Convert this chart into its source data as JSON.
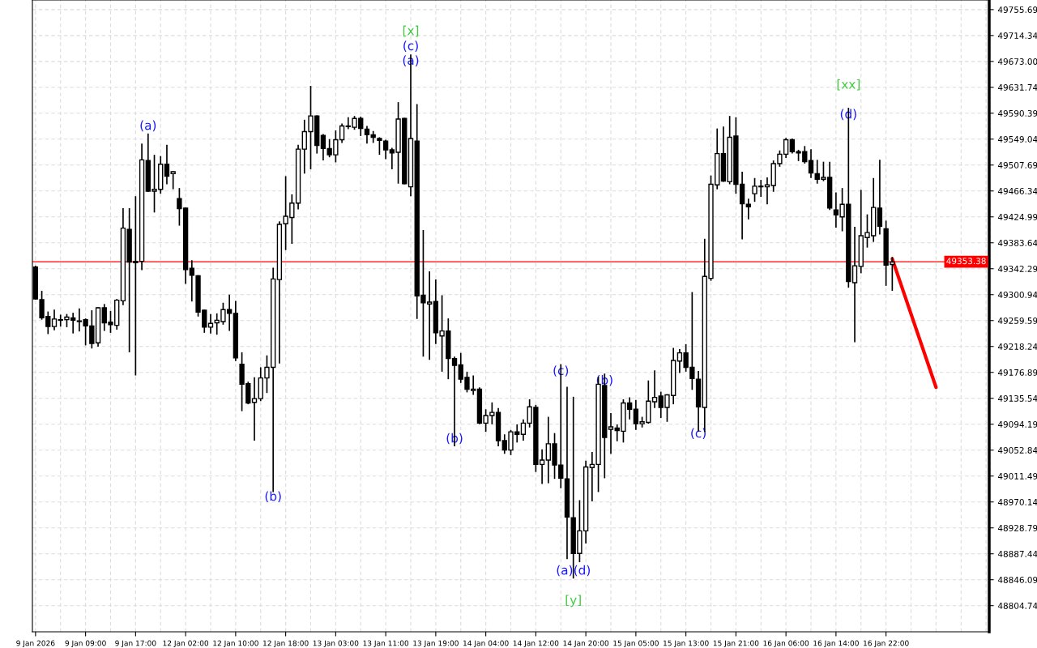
{
  "chart_data": {
    "type": "candlestick",
    "categories": [
      "9 Jan 2026",
      null,
      null,
      null,
      null,
      null,
      null,
      null,
      "9 Jan 09:00",
      null,
      null,
      null,
      null,
      null,
      null,
      null,
      "9 Jan 17:00",
      null,
      null,
      null,
      null,
      null,
      null,
      null,
      "12 Jan 02:00",
      null,
      null,
      null,
      null,
      null,
      null,
      null,
      "12 Jan 10:00",
      null,
      null,
      null,
      null,
      null,
      null,
      null,
      "12 Jan 18:00",
      null,
      null,
      null,
      null,
      null,
      null,
      null,
      "13 Jan 03:00",
      null,
      null,
      null,
      null,
      null,
      null,
      null,
      "13 Jan 11:00",
      null,
      null,
      null,
      null,
      null,
      null,
      null,
      "13 Jan 19:00",
      null,
      null,
      null,
      null,
      null,
      null,
      null,
      "14 Jan 04:00",
      null,
      null,
      null,
      null,
      null,
      null,
      null,
      "14 Jan 12:00",
      null,
      null,
      null,
      null,
      null,
      null,
      null,
      "14 Jan 20:00",
      null,
      null,
      null,
      null,
      null,
      null,
      null,
      "15 Jan 05:00",
      null,
      null,
      null,
      null,
      null,
      null,
      null,
      "15 Jan 13:00",
      null,
      null,
      null,
      null,
      null,
      null,
      null,
      "15 Jan 21:00",
      null,
      null,
      null,
      null,
      null,
      null,
      null,
      "16 Jan 06:00",
      null,
      null,
      null,
      null,
      null,
      null,
      null,
      "16 Jan 14:00",
      null,
      null,
      null,
      null,
      null,
      null,
      null,
      "16 Jan 22:00",
      null,
      null,
      null,
      null,
      null,
      null,
      null,
      null,
      null,
      null,
      null,
      null,
      null,
      null,
      null,
      null
    ],
    "ohlc": [
      [
        49345,
        49347,
        49293,
        49294
      ],
      [
        49293,
        49307,
        49261,
        49264
      ],
      [
        49266,
        49274,
        49238,
        49250
      ],
      [
        49250,
        49277,
        49244,
        49262
      ],
      [
        49260,
        49269,
        49250,
        49261
      ],
      [
        49261,
        49270,
        49249,
        49265
      ],
      [
        49264,
        49272,
        49239,
        49260
      ],
      [
        49259,
        49279,
        49242,
        49258
      ],
      [
        49261,
        49263,
        49220,
        49251
      ],
      [
        49251,
        49276,
        49215,
        49223
      ],
      [
        49224,
        49281,
        49218,
        49280
      ],
      [
        49280,
        49286,
        49243,
        49256
      ],
      [
        49257,
        49275,
        49240,
        49253
      ],
      [
        49252,
        49294,
        49245,
        49292
      ],
      [
        49291,
        49439,
        49284,
        49407
      ],
      [
        49405,
        49439,
        49209,
        49353
      ],
      [
        49354,
        49458,
        49172,
        49352
      ],
      [
        49354,
        49542,
        49340,
        49516
      ],
      [
        49515,
        49558,
        49465,
        49466
      ],
      [
        49466,
        49524,
        49432,
        49469
      ],
      [
        49469,
        49522,
        49462,
        49509
      ],
      [
        49509,
        49540,
        49477,
        49490
      ],
      [
        49494,
        49498,
        49469,
        49497
      ],
      [
        49454,
        49471,
        49411,
        49438
      ],
      [
        49439,
        49440,
        49318,
        49341
      ],
      [
        49343,
        49356,
        49290,
        49332
      ],
      [
        49331,
        49332,
        49266,
        49273
      ],
      [
        49276,
        49277,
        49240,
        49249
      ],
      [
        49249,
        49270,
        49239,
        49255
      ],
      [
        49256,
        49271,
        49237,
        49260
      ],
      [
        49258,
        49288,
        49253,
        49277
      ],
      [
        49277,
        49301,
        49243,
        49271
      ],
      [
        49271,
        49291,
        49195,
        49200
      ],
      [
        49190,
        49209,
        49115,
        49158
      ],
      [
        49159,
        49162,
        49126,
        49128
      ],
      [
        49129,
        49169,
        49068,
        49135
      ],
      [
        49135,
        49185,
        49131,
        49168
      ],
      [
        49168,
        49204,
        49144,
        49185
      ],
      [
        49185,
        49344,
        48986,
        49326
      ],
      [
        49325,
        49418,
        49191,
        49413
      ],
      [
        49414,
        49490,
        49372,
        49426
      ],
      [
        49424,
        49461,
        49382,
        49447
      ],
      [
        49447,
        49540,
        49437,
        49533
      ],
      [
        49533,
        49580,
        49494,
        49561
      ],
      [
        49561,
        49634,
        49501,
        49586
      ],
      [
        49586,
        49587,
        49526,
        49539
      ],
      [
        49555,
        49557,
        49515,
        49534
      ],
      [
        49534,
        49549,
        49520,
        49524
      ],
      [
        49524,
        49563,
        49512,
        49548
      ],
      [
        49548,
        49574,
        49543,
        49570
      ],
      [
        49569,
        49584,
        49565,
        49570
      ],
      [
        49568,
        49586,
        49564,
        49582
      ],
      [
        49582,
        49585,
        49554,
        49566
      ],
      [
        49565,
        49570,
        49542,
        49556
      ],
      [
        49556,
        49562,
        49543,
        49552
      ],
      [
        49550,
        49552,
        49524,
        49547
      ],
      [
        49546,
        49548,
        49517,
        49532
      ],
      [
        49532,
        49535,
        49501,
        49527
      ],
      [
        49528,
        49608,
        49478,
        49581
      ],
      [
        49582,
        49583,
        49477,
        49478
      ],
      [
        49473,
        49684,
        49458,
        49550
      ],
      [
        49546,
        49605,
        49262,
        49299
      ],
      [
        49300,
        49404,
        49202,
        49288
      ],
      [
        49286,
        49338,
        49197,
        49289
      ],
      [
        49290,
        49325,
        49222,
        49240
      ],
      [
        49235,
        49300,
        49178,
        49243
      ],
      [
        49243,
        49263,
        49166,
        49199
      ],
      [
        49199,
        49202,
        49059,
        49188
      ],
      [
        49189,
        49208,
        49160,
        49166
      ],
      [
        49169,
        49178,
        49145,
        49150
      ],
      [
        49148,
        49172,
        49141,
        49150
      ],
      [
        49150,
        49153,
        49094,
        49096
      ],
      [
        49096,
        49118,
        49082,
        49108
      ],
      [
        49108,
        49129,
        49094,
        49113
      ],
      [
        49113,
        49120,
        49059,
        49068
      ],
      [
        49068,
        49078,
        49047,
        49053
      ],
      [
        49053,
        49085,
        49045,
        49082
      ],
      [
        49082,
        49094,
        49065,
        49078
      ],
      [
        49078,
        49102,
        49068,
        49096
      ],
      [
        49096,
        49134,
        49089,
        49122
      ],
      [
        49121,
        49125,
        49018,
        49030
      ],
      [
        49030,
        49054,
        48999,
        49037
      ],
      [
        49037,
        49106,
        49000,
        49063
      ],
      [
        49063,
        49080,
        49007,
        49029
      ],
      [
        49029,
        49190,
        48992,
        49008
      ],
      [
        49007,
        49154,
        48879,
        48946
      ],
      [
        48945,
        49138,
        48848,
        48888
      ],
      [
        48888,
        48973,
        48874,
        48924
      ],
      [
        48924,
        49036,
        48904,
        49026
      ],
      [
        49025,
        49050,
        48971,
        49030
      ],
      [
        49030,
        49170,
        48986,
        49158
      ],
      [
        49156,
        49175,
        49008,
        49073
      ],
      [
        49086,
        49112,
        49047,
        49090
      ],
      [
        49088,
        49094,
        49067,
        49084
      ],
      [
        49083,
        49134,
        49065,
        49128
      ],
      [
        49128,
        49137,
        49102,
        49118
      ],
      [
        49118,
        49133,
        49085,
        49095
      ],
      [
        49095,
        49106,
        49089,
        49098
      ],
      [
        49097,
        49164,
        49095,
        49131
      ],
      [
        49130,
        49180,
        49120,
        49137
      ],
      [
        49139,
        49146,
        49104,
        49121
      ],
      [
        49121,
        49142,
        49098,
        49141
      ],
      [
        49140,
        49216,
        49126,
        49196
      ],
      [
        49195,
        49214,
        49176,
        49208
      ],
      [
        49208,
        49222,
        49178,
        49185
      ],
      [
        49185,
        49305,
        49149,
        49167
      ],
      [
        49166,
        49179,
        49083,
        49122
      ],
      [
        49121,
        49390,
        49082,
        49330
      ],
      [
        49327,
        49491,
        49323,
        49477
      ],
      [
        49476,
        49566,
        49469,
        49526
      ],
      [
        49526,
        49569,
        49481,
        49482
      ],
      [
        49481,
        49586,
        49477,
        49552
      ],
      [
        49554,
        49584,
        49462,
        49477
      ],
      [
        49477,
        49497,
        49389,
        49446
      ],
      [
        49445,
        49454,
        49421,
        49441
      ],
      [
        49462,
        49487,
        49449,
        49474
      ],
      [
        49474,
        49484,
        49457,
        49473
      ],
      [
        49473,
        49488,
        49445,
        49476
      ],
      [
        49475,
        49515,
        49465,
        49510
      ],
      [
        49510,
        49531,
        49505,
        49525
      ],
      [
        49525,
        49551,
        49519,
        49548
      ],
      [
        49548,
        49550,
        49526,
        49529
      ],
      [
        49529,
        49532,
        49514,
        49527
      ],
      [
        49529,
        49538,
        49510,
        49513
      ],
      [
        49515,
        49533,
        49487,
        49495
      ],
      [
        49494,
        49516,
        49478,
        49485
      ],
      [
        49485,
        49513,
        49482,
        49488
      ],
      [
        49488,
        49513,
        49436,
        49439
      ],
      [
        49436,
        49464,
        49408,
        49428
      ],
      [
        49425,
        49471,
        49402,
        49445
      ],
      [
        49445,
        49599,
        49312,
        49322
      ],
      [
        49320,
        49409,
        49225,
        49347
      ],
      [
        49346,
        49468,
        49335,
        49395
      ],
      [
        49392,
        49429,
        49376,
        49400
      ],
      [
        49395,
        49487,
        49385,
        49440
      ],
      [
        49439,
        49516,
        49397,
        49410
      ],
      [
        49406,
        49419,
        49315,
        49348
      ],
      [
        49349,
        49361,
        49307,
        49353
      ],
      null,
      null,
      null,
      null,
      null,
      null,
      null,
      null,
      null,
      null,
      null,
      null,
      null,
      null,
      null
    ],
    "series": [
      {
        "type": "line",
        "color": "#ff0000",
        "values": [
          null,
          null,
          null,
          null,
          null,
          null,
          null,
          null,
          null,
          null,
          null,
          null,
          null,
          null,
          null,
          null,
          null,
          null,
          null,
          null,
          null,
          null,
          null,
          null,
          null,
          null,
          null,
          null,
          null,
          null,
          null,
          null,
          null,
          null,
          null,
          null,
          null,
          null,
          null,
          null,
          null,
          null,
          null,
          null,
          null,
          null,
          null,
          null,
          null,
          null,
          null,
          null,
          null,
          null,
          null,
          null,
          null,
          null,
          null,
          null,
          null,
          null,
          null,
          null,
          null,
          null,
          null,
          null,
          null,
          null,
          null,
          null,
          null,
          null,
          null,
          null,
          null,
          null,
          null,
          null,
          null,
          null,
          null,
          null,
          null,
          null,
          null,
          null,
          null,
          null,
          null,
          null,
          null,
          null,
          null,
          null,
          null,
          null,
          null,
          null,
          null,
          null,
          null,
          null,
          null,
          null,
          null,
          null,
          null,
          null,
          null,
          null,
          null,
          null,
          null,
          null,
          null,
          null,
          null,
          null,
          null,
          null,
          null,
          null,
          null,
          null,
          null,
          null,
          null,
          null,
          null,
          null,
          null,
          null,
          null,
          null,
          null,
          49358,
          null,
          null,
          null,
          null,
          null,
          null,
          49153,
          null,
          null,
          null,
          null,
          null,
          null,
          null,
          null
        ]
      }
    ],
    "ylim": [
      48763,
      49771
    ],
    "yticks": [
      49755.69,
      49714.34,
      {
        "value": 49673.0,
        "label": "49673.00"
      },
      49631.74,
      49590.39,
      49549.04,
      49507.69,
      49466.34,
      49424.99,
      49383.64,
      49342.29,
      49300.94,
      49259.59,
      49218.24,
      49176.89,
      49135.54,
      49094.19,
      49052.84,
      49011.49,
      48970.14,
      48928.79,
      48887.44,
      48846.09,
      48804.74
    ],
    "ref_lines": [
      {
        "axis": "y",
        "value": 49353.38,
        "label": "49353.38",
        "color": "#ff0000"
      }
    ],
    "annotations": [
      "(a)",
      "(b)",
      "[x]",
      "(c)",
      "(a)",
      "(b)",
      "(c)",
      "(b)",
      "(a)",
      "(d)",
      "[y]",
      "(c)",
      "[xx]",
      "(d)"
    ],
    "grid": true
  }
}
